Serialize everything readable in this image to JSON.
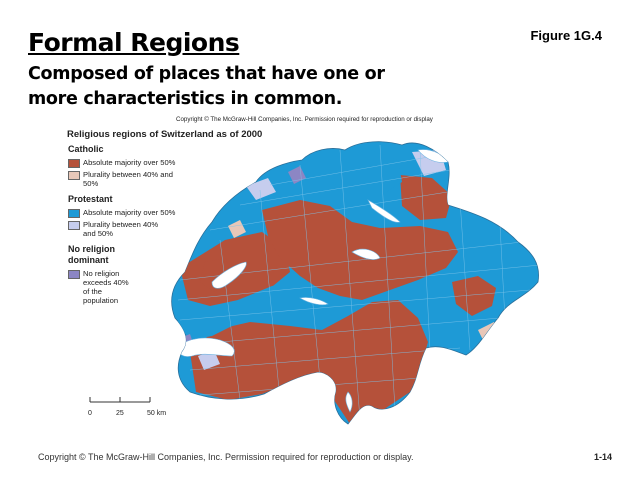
{
  "slide": {
    "title": "Formal Regions",
    "subtitle": "Composed of places that have one or more characteristics in common.",
    "figure_label": "Figure 1G.4",
    "footer": "Copyright © The McGraw-Hill Companies, Inc. Permission required for reproduction or display.",
    "page_number": "1-14"
  },
  "map": {
    "copyright": "Copyright © The McGraw-Hill Companies, Inc. Permission required for reproduction or display",
    "title": "Religious regions of Switzerland as of 2000",
    "colors": {
      "catholic_majority": "#b5513a",
      "catholic_plurality": "#e8c7b8",
      "protestant_majority": "#1e9ad6",
      "protestant_plurality": "#c6cdee",
      "no_religion": "#8c86c4",
      "lake": "#ffffff",
      "boundary": "#6fb4e0"
    },
    "legend": {
      "catholic": {
        "heading": "Catholic",
        "items": [
          "Absolute majority over 50%",
          "Plurality between 40% and 50%"
        ]
      },
      "protestant": {
        "heading": "Protestant",
        "items": [
          "Absolute majority over 50%",
          "Plurality between 40% and 50%"
        ]
      },
      "none": {
        "heading": "No religion dominant",
        "items": [
          "No religion exceeds 40% of the population"
        ]
      }
    },
    "scale": {
      "labels": [
        "0",
        "25",
        "50 km"
      ]
    }
  }
}
